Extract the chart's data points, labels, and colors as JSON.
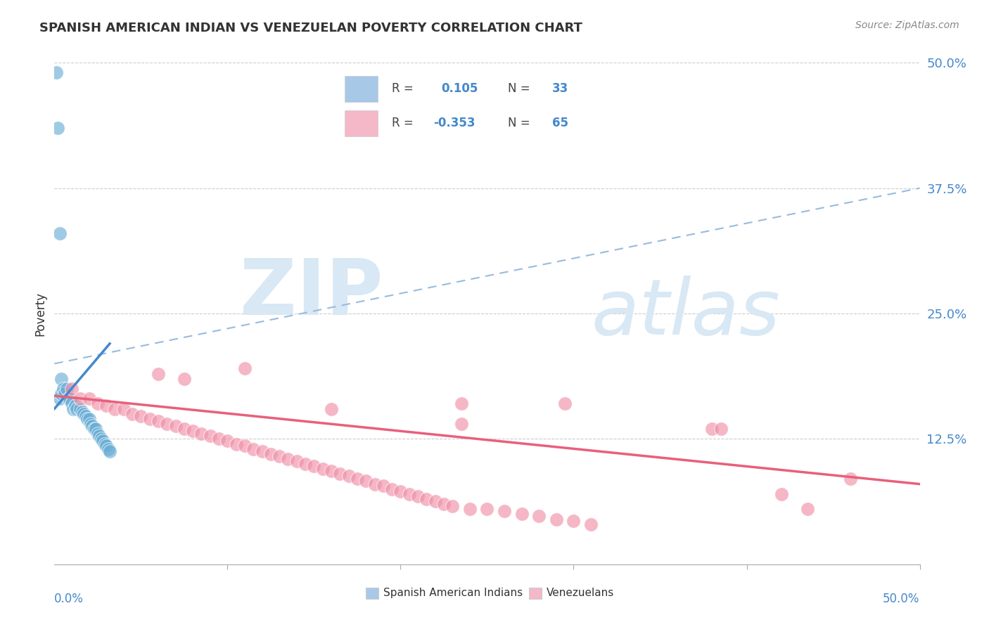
{
  "title": "SPANISH AMERICAN INDIAN VS VENEZUELAN POVERTY CORRELATION CHART",
  "source": "Source: ZipAtlas.com",
  "ylabel": "Poverty",
  "legend_label_blue": "Spanish American Indians",
  "legend_label_pink": "Venezuelans",
  "blue_color": "#a8c8e8",
  "blue_color_dark": "#6aaed6",
  "pink_color": "#f4b8c8",
  "pink_color_dark": "#f090a8",
  "blue_line_color": "#4488cc",
  "pink_line_color": "#e8607a",
  "blue_dashed_color": "#99bbdd",
  "axis_label_color": "#4488cc",
  "title_color": "#333333",
  "source_color": "#888888",
  "background_color": "#ffffff",
  "grid_color": "#cccccc",
  "watermark_color": "#d8e8f4",
  "legend_box_color": "#dddddd",
  "blue_scatter_x": [
    0.003,
    0.004,
    0.004,
    0.005,
    0.006,
    0.007,
    0.008,
    0.009,
    0.01,
    0.011,
    0.012,
    0.013,
    0.015,
    0.016,
    0.017,
    0.018,
    0.019,
    0.02,
    0.021,
    0.022,
    0.023,
    0.024,
    0.025,
    0.026,
    0.027,
    0.028,
    0.029,
    0.03,
    0.031,
    0.032,
    0.003,
    0.002,
    0.001
  ],
  "blue_scatter_y": [
    0.165,
    0.185,
    0.17,
    0.175,
    0.17,
    0.175,
    0.165,
    0.165,
    0.16,
    0.155,
    0.158,
    0.155,
    0.155,
    0.152,
    0.15,
    0.148,
    0.145,
    0.145,
    0.14,
    0.138,
    0.135,
    0.135,
    0.13,
    0.128,
    0.125,
    0.123,
    0.12,
    0.118,
    0.115,
    0.113,
    0.33,
    0.435,
    0.49
  ],
  "pink_scatter_x": [
    0.01,
    0.015,
    0.02,
    0.025,
    0.03,
    0.035,
    0.04,
    0.045,
    0.05,
    0.055,
    0.06,
    0.065,
    0.07,
    0.075,
    0.08,
    0.085,
    0.09,
    0.095,
    0.1,
    0.105,
    0.11,
    0.115,
    0.12,
    0.125,
    0.13,
    0.135,
    0.14,
    0.145,
    0.15,
    0.155,
    0.16,
    0.165,
    0.17,
    0.175,
    0.18,
    0.185,
    0.19,
    0.195,
    0.2,
    0.205,
    0.21,
    0.215,
    0.22,
    0.225,
    0.23,
    0.235,
    0.24,
    0.25,
    0.26,
    0.27,
    0.28,
    0.29,
    0.3,
    0.31,
    0.06,
    0.075,
    0.11,
    0.16,
    0.235,
    0.295,
    0.38,
    0.385,
    0.42,
    0.435,
    0.46
  ],
  "pink_scatter_y": [
    0.175,
    0.165,
    0.165,
    0.16,
    0.158,
    0.155,
    0.155,
    0.15,
    0.148,
    0.145,
    0.143,
    0.14,
    0.138,
    0.135,
    0.133,
    0.13,
    0.128,
    0.125,
    0.123,
    0.12,
    0.118,
    0.115,
    0.113,
    0.11,
    0.108,
    0.105,
    0.103,
    0.1,
    0.098,
    0.095,
    0.093,
    0.09,
    0.088,
    0.085,
    0.083,
    0.08,
    0.078,
    0.075,
    0.073,
    0.07,
    0.068,
    0.065,
    0.063,
    0.06,
    0.058,
    0.14,
    0.055,
    0.055,
    0.053,
    0.05,
    0.048,
    0.045,
    0.043,
    0.04,
    0.19,
    0.185,
    0.195,
    0.155,
    0.16,
    0.16,
    0.135,
    0.135,
    0.07,
    0.055,
    0.085
  ],
  "blue_line": [
    [
      0.0,
      0.155
    ],
    [
      0.032,
      0.22
    ]
  ],
  "blue_dashed_line": [
    [
      0.0,
      0.2
    ],
    [
      0.5,
      0.375
    ]
  ],
  "pink_line": [
    [
      0.0,
      0.168
    ],
    [
      0.5,
      0.08
    ]
  ],
  "xlim": [
    0.0,
    0.5
  ],
  "ylim": [
    0.0,
    0.5
  ],
  "yticks": [
    0.125,
    0.25,
    0.375,
    0.5
  ],
  "ytick_labels": [
    "12.5%",
    "25.0%",
    "37.5%",
    "50.0%"
  ],
  "xticks_minor": [
    0.1,
    0.2,
    0.3,
    0.4,
    0.5
  ]
}
